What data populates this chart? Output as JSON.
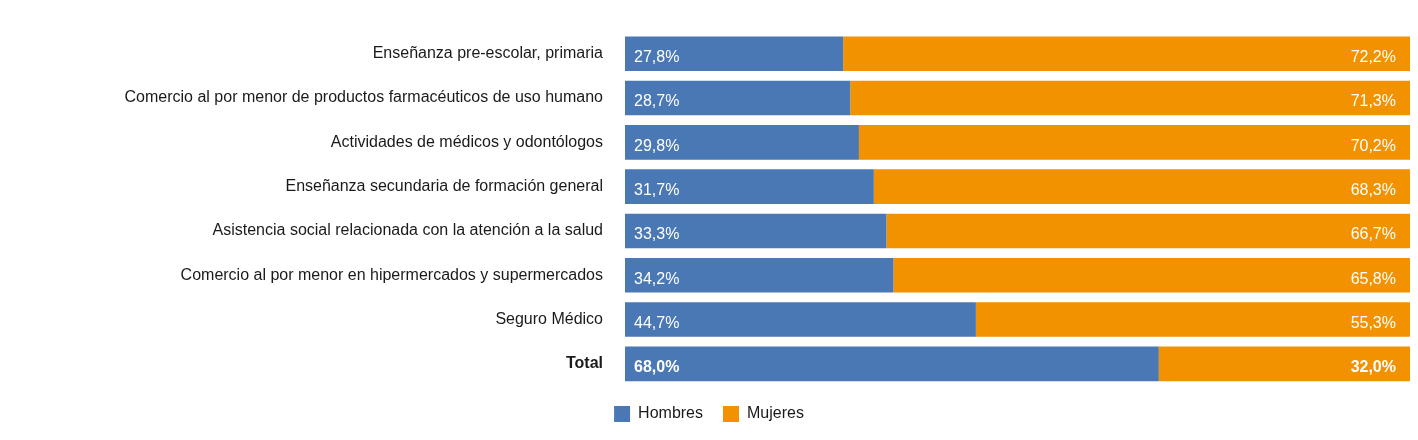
{
  "chart_data": {
    "type": "bar",
    "orientation": "horizontal",
    "stacked": true,
    "categories": [
      "Enseñanza pre-escolar, primaria",
      "Comercio al por menor de productos farmacéuticos de uso humano",
      "Actividades de médicos y odontólogos",
      "Enseñanza secundaria de formación general",
      "Asistencia social relacionada con la atención a la salud",
      "Comercio al por menor en hipermercados y supermercados",
      "Seguro Médico",
      "Total"
    ],
    "series": [
      {
        "name": "Hombres",
        "color": "#4a78b5",
        "values": [
          27.8,
          28.7,
          29.8,
          31.7,
          33.3,
          34.2,
          44.7,
          68.0
        ],
        "value_labels": [
          "27,8%",
          "28,7%",
          "29,8%",
          "31,7%",
          "33,3%",
          "34,2%",
          "44,7%",
          "68,0%"
        ]
      },
      {
        "name": "Mujeres",
        "color": "#f39200",
        "values": [
          72.2,
          71.3,
          70.2,
          68.3,
          66.7,
          65.8,
          55.3,
          32.0
        ],
        "value_labels": [
          "72,2%",
          "71,3%",
          "70,2%",
          "68,3%",
          "66,7%",
          "65,8%",
          "55,3%",
          "32,0%"
        ]
      }
    ],
    "xlim": [
      0,
      100
    ],
    "tick_labels": "y",
    "legend": "bottom"
  }
}
